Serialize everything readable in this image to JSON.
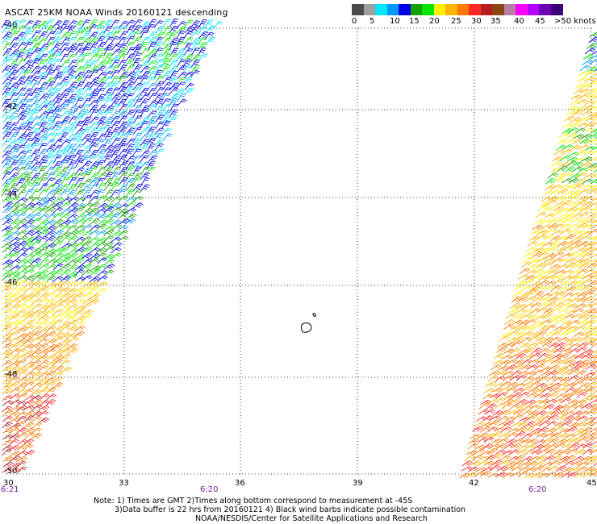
{
  "title": "ASCAT 25KM NOAA Winds 20160121 descending",
  "colorbar": {
    "colors": [
      "#4a4a4a",
      "#9e9e9e",
      "#00e5ff",
      "#0096ff",
      "#0000e6",
      "#14a000",
      "#00e600",
      "#fff000",
      "#ffb400",
      "#ff7800",
      "#ff2828",
      "#b41e1e",
      "#8c4614",
      "#b482a0",
      "#ff00ff",
      "#b400ff",
      "#6e00b4",
      "#3c0078"
    ],
    "labels": [
      "0",
      "5",
      "10",
      "15",
      "20",
      "25",
      "30",
      "35",
      "40",
      "45",
      ">50 knots"
    ]
  },
  "axes": {
    "lon_ticks": [
      "30",
      "33",
      "36",
      "39",
      "42",
      "45"
    ],
    "lat_ticks": [
      "-40",
      "-42",
      "-44",
      "-46",
      "-48",
      "-50"
    ],
    "time_labels": [
      "6:21",
      "6:20",
      "6:20"
    ]
  },
  "notes": [
    "Note: 1) Times are GMT 2)Times along bottom correspond to measurement at -45S",
    "3)Data buffer is 22 hrs from 20160121 4) Black wind barbs indicate possible contamination",
    "NOAA/NESDIS/Center for Satellite Applications and Research"
  ]
}
